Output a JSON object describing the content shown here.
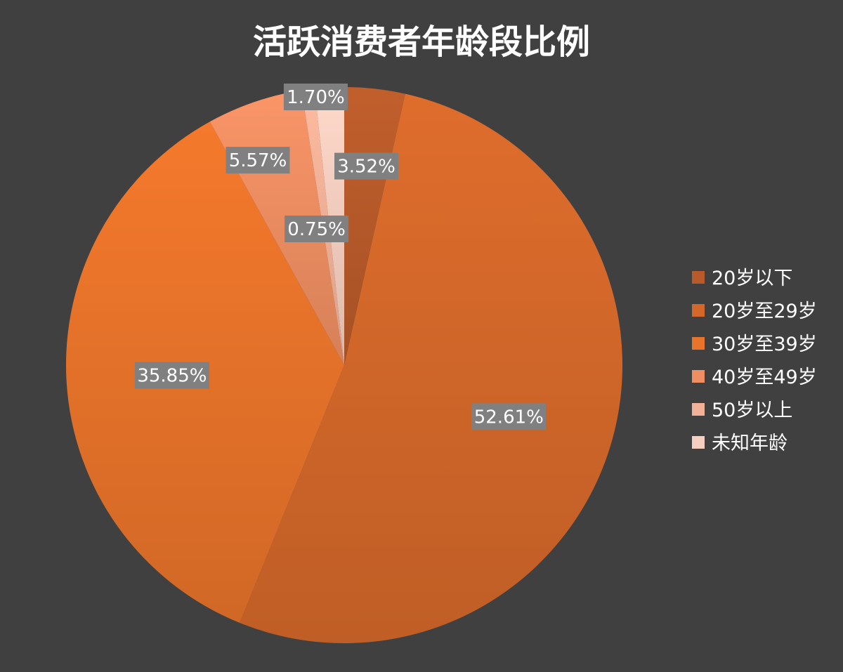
{
  "chart_data": {
    "type": "pie",
    "title": "活跃消费者年龄段比例",
    "categories": [
      "20岁以下",
      "20岁至29岁",
      "30岁至39岁",
      "40岁至49岁",
      "50岁以上",
      "未知年龄"
    ],
    "values": [
      3.52,
      52.61,
      35.85,
      5.57,
      0.75,
      1.7
    ],
    "data_labels": [
      "3.52%",
      "52.61%",
      "35.85%",
      "5.57%",
      "0.75%",
      "1.70%"
    ],
    "colors": [
      "#b85a2a",
      "#d4682a",
      "#e8732a",
      "#ee8e62",
      "#f2b298",
      "#f6cfc0"
    ],
    "legend_position": "right",
    "start_angle_deg": 0,
    "direction": "clockwise",
    "background": "#404040",
    "label_background": "#808080",
    "text_color": "#ffffff"
  }
}
